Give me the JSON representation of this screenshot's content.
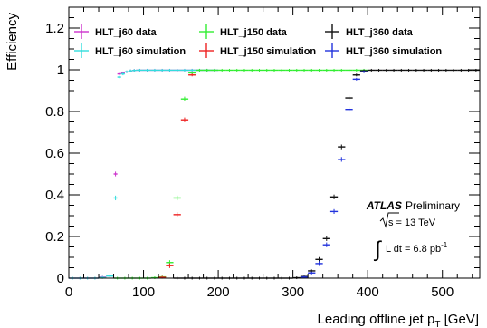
{
  "chart_data": {
    "type": "scatter",
    "title": "",
    "xlabel": "Leading offline jet p",
    "xlabel_sub": "T",
    "xlabel_unit": " [GeV]",
    "ylabel": "Efficiency",
    "xlim": [
      0,
      550
    ],
    "ylim": [
      0,
      1.3
    ],
    "x_ticks": [
      "0",
      "100",
      "200",
      "300",
      "400",
      "500"
    ],
    "y_ticks": [
      "0",
      "0.2",
      "0.4",
      "0.6",
      "0.8",
      "1",
      "1.2"
    ],
    "grid": false,
    "legend_position": "top",
    "series": [
      {
        "name": "HLT_j60 data",
        "color": "#cc33cc",
        "points": [
          {
            "x": 5,
            "y": 0.0,
            "xe": 5
          },
          {
            "x": 15,
            "y": 0.0,
            "xe": 5
          },
          {
            "x": 25,
            "y": 0.0,
            "xe": 5
          },
          {
            "x": 35,
            "y": 0.0,
            "xe": 5
          },
          {
            "x": 45,
            "y": 0.005,
            "xe": 5
          },
          {
            "x": 55,
            "y": 0.012,
            "xe": 5
          },
          {
            "x": 62.5,
            "y": 0.5,
            "xe": 2.5
          },
          {
            "x": 67.5,
            "y": 0.98,
            "xe": 2.5
          },
          {
            "x": 72.5,
            "y": 0.985,
            "xe": 2.5
          },
          {
            "x": 77.5,
            "y": 0.99,
            "xe": 2.5
          },
          {
            "x": 82.5,
            "y": 0.995,
            "xe": 2.5
          },
          {
            "x": 87.5,
            "y": 0.997,
            "xe": 2.5
          },
          {
            "x": 95,
            "y": 0.998,
            "xe": 5
          },
          {
            "x": 105,
            "y": 0.998,
            "xe": 5
          },
          {
            "x": 115,
            "y": 0.998,
            "xe": 5
          },
          {
            "x": 125,
            "y": 0.998,
            "xe": 5
          },
          {
            "x": 135,
            "y": 0.998,
            "xe": 5
          },
          {
            "x": 145,
            "y": 0.998,
            "xe": 5
          },
          {
            "x": 155,
            "y": 0.998,
            "xe": 5
          },
          {
            "x": 165,
            "y": 0.998,
            "xe": 5
          },
          {
            "x": 175,
            "y": 0.998,
            "xe": 5
          },
          {
            "x": 185,
            "y": 0.998,
            "xe": 5
          },
          {
            "x": 195,
            "y": 0.998,
            "xe": 5
          }
        ]
      },
      {
        "name": "HLT_j60 simulation",
        "color": "#33dddd",
        "points": [
          {
            "x": 5,
            "y": 0.0,
            "xe": 5
          },
          {
            "x": 15,
            "y": 0.0,
            "xe": 5
          },
          {
            "x": 25,
            "y": 0.0,
            "xe": 5
          },
          {
            "x": 35,
            "y": 0.0,
            "xe": 5
          },
          {
            "x": 45,
            "y": 0.003,
            "xe": 5
          },
          {
            "x": 55,
            "y": 0.01,
            "xe": 5
          },
          {
            "x": 62.5,
            "y": 0.385,
            "xe": 2.5
          },
          {
            "x": 67.5,
            "y": 0.965,
            "xe": 2.5
          },
          {
            "x": 72.5,
            "y": 0.98,
            "xe": 2.5
          },
          {
            "x": 77.5,
            "y": 0.99,
            "xe": 2.5
          },
          {
            "x": 82.5,
            "y": 0.995,
            "xe": 2.5
          },
          {
            "x": 87.5,
            "y": 0.997,
            "xe": 2.5
          },
          {
            "x": 95,
            "y": 0.998,
            "xe": 5
          },
          {
            "x": 105,
            "y": 0.998,
            "xe": 5
          },
          {
            "x": 115,
            "y": 0.998,
            "xe": 5
          },
          {
            "x": 125,
            "y": 0.998,
            "xe": 5
          },
          {
            "x": 135,
            "y": 0.998,
            "xe": 5
          },
          {
            "x": 145,
            "y": 0.998,
            "xe": 5
          },
          {
            "x": 155,
            "y": 0.998,
            "xe": 5
          },
          {
            "x": 165,
            "y": 0.998,
            "xe": 5
          },
          {
            "x": 175,
            "y": 0.998,
            "xe": 5
          },
          {
            "x": 185,
            "y": 0.998,
            "xe": 5
          },
          {
            "x": 195,
            "y": 0.998,
            "xe": 5
          }
        ]
      },
      {
        "name": "HLT_j150 data",
        "color": "#33ee33",
        "points": [
          {
            "x": 65,
            "y": 0.0,
            "xe": 5
          },
          {
            "x": 75,
            "y": 0.0,
            "xe": 5
          },
          {
            "x": 85,
            "y": 0.0,
            "xe": 5
          },
          {
            "x": 95,
            "y": 0.0,
            "xe": 5
          },
          {
            "x": 105,
            "y": 0.0,
            "xe": 5
          },
          {
            "x": 115,
            "y": 0.002,
            "xe": 5
          },
          {
            "x": 125,
            "y": 0.006,
            "xe": 5
          },
          {
            "x": 135,
            "y": 0.075,
            "xe": 5
          },
          {
            "x": 145,
            "y": 0.385,
            "xe": 5
          },
          {
            "x": 155,
            "y": 0.86,
            "xe": 5
          },
          {
            "x": 165,
            "y": 0.985,
            "xe": 5
          },
          {
            "x": 175,
            "y": 0.998,
            "xe": 5
          },
          {
            "x": 185,
            "y": 0.998,
            "xe": 5
          },
          {
            "x": 195,
            "y": 0.998,
            "xe": 5
          },
          {
            "x": 205,
            "y": 0.998,
            "xe": 5
          },
          {
            "x": 215,
            "y": 0.998,
            "xe": 5
          },
          {
            "x": 225,
            "y": 0.998,
            "xe": 5
          },
          {
            "x": 235,
            "y": 0.998,
            "xe": 5
          },
          {
            "x": 245,
            "y": 0.998,
            "xe": 5
          },
          {
            "x": 255,
            "y": 0.998,
            "xe": 5
          },
          {
            "x": 265,
            "y": 0.998,
            "xe": 5
          },
          {
            "x": 275,
            "y": 0.998,
            "xe": 5
          },
          {
            "x": 285,
            "y": 0.998,
            "xe": 5
          },
          {
            "x": 295,
            "y": 0.998,
            "xe": 5
          },
          {
            "x": 305,
            "y": 0.998,
            "xe": 5
          },
          {
            "x": 315,
            "y": 0.998,
            "xe": 5
          },
          {
            "x": 325,
            "y": 0.998,
            "xe": 5
          },
          {
            "x": 335,
            "y": 0.998,
            "xe": 5
          },
          {
            "x": 345,
            "y": 0.998,
            "xe": 5
          },
          {
            "x": 355,
            "y": 0.998,
            "xe": 5
          },
          {
            "x": 365,
            "y": 0.998,
            "xe": 5
          },
          {
            "x": 375,
            "y": 0.998,
            "xe": 5
          },
          {
            "x": 385,
            "y": 0.998,
            "xe": 5
          },
          {
            "x": 395,
            "y": 0.998,
            "xe": 5
          }
        ]
      },
      {
        "name": "HLT_j150 simulation",
        "color": "#ee2222",
        "points": [
          {
            "x": 125,
            "y": 0.004,
            "xe": 5
          },
          {
            "x": 135,
            "y": 0.06,
            "xe": 5
          },
          {
            "x": 145,
            "y": 0.305,
            "xe": 5
          },
          {
            "x": 155,
            "y": 0.76,
            "xe": 5
          },
          {
            "x": 165,
            "y": 0.975,
            "xe": 5
          }
        ]
      },
      {
        "name": "HLT_j360 data",
        "color": "#111111",
        "points": [
          {
            "x": 145,
            "y": 0.0,
            "xe": 5
          },
          {
            "x": 155,
            "y": 0.0,
            "xe": 5
          },
          {
            "x": 165,
            "y": 0.0,
            "xe": 5
          },
          {
            "x": 175,
            "y": 0.0,
            "xe": 5
          },
          {
            "x": 185,
            "y": 0.0,
            "xe": 5
          },
          {
            "x": 195,
            "y": 0.0,
            "xe": 5
          },
          {
            "x": 205,
            "y": 0.0,
            "xe": 5
          },
          {
            "x": 215,
            "y": 0.0,
            "xe": 5
          },
          {
            "x": 225,
            "y": 0.0,
            "xe": 5
          },
          {
            "x": 235,
            "y": 0.0,
            "xe": 5
          },
          {
            "x": 245,
            "y": 0.0,
            "xe": 5
          },
          {
            "x": 255,
            "y": 0.0,
            "xe": 5
          },
          {
            "x": 265,
            "y": 0.0,
            "xe": 5
          },
          {
            "x": 275,
            "y": 0.0,
            "xe": 5
          },
          {
            "x": 285,
            "y": 0.0,
            "xe": 5
          },
          {
            "x": 295,
            "y": 0.0,
            "xe": 5
          },
          {
            "x": 305,
            "y": 0.002,
            "xe": 5
          },
          {
            "x": 315,
            "y": 0.008,
            "xe": 5
          },
          {
            "x": 325,
            "y": 0.035,
            "xe": 5
          },
          {
            "x": 335,
            "y": 0.09,
            "xe": 5
          },
          {
            "x": 345,
            "y": 0.19,
            "xe": 5
          },
          {
            "x": 355,
            "y": 0.39,
            "xe": 5
          },
          {
            "x": 365,
            "y": 0.63,
            "xe": 5
          },
          {
            "x": 375,
            "y": 0.865,
            "xe": 5
          },
          {
            "x": 385,
            "y": 0.975,
            "xe": 5
          },
          {
            "x": 395,
            "y": 0.995,
            "xe": 5
          },
          {
            "x": 405,
            "y": 0.998,
            "xe": 5
          },
          {
            "x": 415,
            "y": 0.998,
            "xe": 5
          },
          {
            "x": 425,
            "y": 0.998,
            "xe": 5
          },
          {
            "x": 435,
            "y": 0.998,
            "xe": 5
          },
          {
            "x": 445,
            "y": 0.998,
            "xe": 5
          },
          {
            "x": 455,
            "y": 0.998,
            "xe": 5
          },
          {
            "x": 465,
            "y": 0.998,
            "xe": 5
          },
          {
            "x": 475,
            "y": 0.998,
            "xe": 5
          },
          {
            "x": 485,
            "y": 0.998,
            "xe": 5
          },
          {
            "x": 495,
            "y": 0.998,
            "xe": 5
          },
          {
            "x": 505,
            "y": 0.998,
            "xe": 5
          },
          {
            "x": 515,
            "y": 0.998,
            "xe": 5
          },
          {
            "x": 525,
            "y": 0.998,
            "xe": 5
          },
          {
            "x": 535,
            "y": 0.998,
            "xe": 5
          },
          {
            "x": 545,
            "y": 0.998,
            "xe": 5
          }
        ]
      },
      {
        "name": "HLT_j360 simulation",
        "color": "#2233dd",
        "points": [
          {
            "x": 315,
            "y": 0.005,
            "xe": 5
          },
          {
            "x": 325,
            "y": 0.025,
            "xe": 5
          },
          {
            "x": 335,
            "y": 0.07,
            "xe": 5
          },
          {
            "x": 345,
            "y": 0.16,
            "xe": 5
          },
          {
            "x": 355,
            "y": 0.32,
            "xe": 5
          },
          {
            "x": 365,
            "y": 0.57,
            "xe": 5
          },
          {
            "x": 375,
            "y": 0.81,
            "xe": 5
          },
          {
            "x": 385,
            "y": 0.955,
            "xe": 5
          },
          {
            "x": 395,
            "y": 0.99,
            "xe": 5
          }
        ]
      }
    ],
    "annotations": {
      "atlas_label": "ATLAS",
      "atlas_status": "Preliminary",
      "energy_label": "s = 13 TeV",
      "lumi_label": "L dt = 6.8 pb",
      "lumi_unit_exp": "-1"
    }
  }
}
